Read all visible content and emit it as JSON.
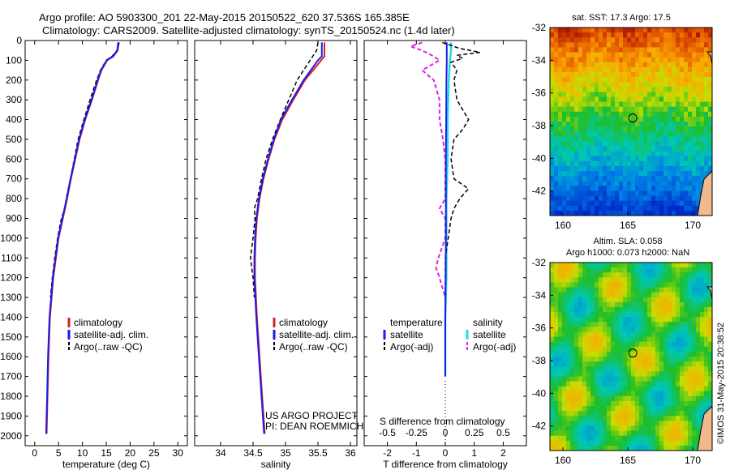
{
  "header": {
    "line1": "Argo profile: AO 5903300_201 22-May-2015 20150522_620 37.536S 165.385E",
    "line2": "Climatology: CARS2009. Satellite-adjusted climatology: synTS_20150524.nc (1.4d later)"
  },
  "colors": {
    "climatology": "#d62020",
    "satellite": "#1a1aee",
    "argo": "#000000",
    "sat_diff_sal": "#22dddd",
    "argo_diff_sal": "#dd22dd"
  },
  "chart_data": [
    {
      "type": "line",
      "title": "Temperature profile",
      "xlabel": "temperature (deg C)",
      "ylabel": "",
      "xlim": [
        -2,
        32
      ],
      "ylim": [
        2050,
        0
      ],
      "xticks": [
        "0",
        "5",
        "10",
        "15",
        "20",
        "25",
        "30"
      ],
      "yticks": [
        "0",
        "100",
        "200",
        "300",
        "400",
        "500",
        "600",
        "700",
        "800",
        "900",
        "1000",
        "1100",
        "1200",
        "1300",
        "1400",
        "1500",
        "1600",
        "1700",
        "1800",
        "1900",
        "2000"
      ],
      "legend": [
        "climatology",
        "satellite-adj. clim.",
        "Argo(..raw -QC)"
      ],
      "series": [
        {
          "name": "climatology",
          "pressure": [
            10,
            50,
            80,
            100,
            150,
            200,
            300,
            400,
            500,
            600,
            700,
            800,
            900,
            1000,
            1200,
            1400,
            1600,
            1800,
            1990
          ],
          "values": [
            17.6,
            17.4,
            16.5,
            15.2,
            14.0,
            13.3,
            12.0,
            10.6,
            9.4,
            8.5,
            7.6,
            6.8,
            5.9,
            5.0,
            3.9,
            3.2,
            2.9,
            2.7,
            2.5
          ]
        },
        {
          "name": "satellite-adj. clim.",
          "pressure": [
            10,
            50,
            80,
            100,
            150,
            200,
            300,
            400,
            500,
            600,
            700,
            800,
            900,
            1000,
            1200,
            1400,
            1600,
            1800,
            1990
          ],
          "values": [
            17.5,
            17.3,
            16.4,
            15.1,
            13.9,
            13.2,
            11.9,
            10.5,
            9.3,
            8.4,
            7.5,
            6.7,
            5.8,
            4.9,
            3.8,
            3.1,
            2.8,
            2.6,
            2.4
          ]
        },
        {
          "name": "Argo(..raw -QC)",
          "pressure": [
            10,
            50,
            80,
            100,
            150,
            200,
            300,
            400,
            500,
            600,
            700,
            800,
            850,
            900,
            1000,
            1100,
            1200,
            1300
          ],
          "values": [
            17.7,
            17.3,
            16.2,
            15.0,
            13.8,
            13.0,
            11.6,
            10.3,
            9.1,
            8.3,
            7.5,
            6.6,
            6.3,
            5.6,
            4.8,
            4.2,
            3.7,
            3.3
          ]
        }
      ]
    },
    {
      "type": "line",
      "title": "Salinity profile",
      "xlabel": "salinity",
      "ylabel": "",
      "xlim": [
        33.6,
        36.1
      ],
      "ylim": [
        2050,
        0
      ],
      "xticks": [
        "34",
        "34.5",
        "35",
        "35.5",
        "36"
      ],
      "legend": [
        "climatology",
        "satellite-adj. clim.",
        "Argo(..raw -QC)"
      ],
      "annotation1": "US ARGO PROJECT",
      "annotation2": "PI: DEAN ROEMMICH",
      "series": [
        {
          "name": "climatology",
          "pressure": [
            10,
            50,
            80,
            100,
            200,
            300,
            400,
            500,
            600,
            700,
            800,
            900,
            1000,
            1100,
            1200,
            1400,
            1600,
            1800,
            1990
          ],
          "values": [
            35.6,
            35.6,
            35.6,
            35.55,
            35.3,
            35.12,
            34.95,
            34.83,
            34.74,
            34.66,
            34.6,
            34.56,
            34.54,
            34.53,
            34.53,
            34.56,
            34.6,
            34.64,
            34.68
          ]
        },
        {
          "name": "satellite-adj. clim.",
          "pressure": [
            10,
            50,
            80,
            100,
            200,
            300,
            400,
            500,
            600,
            700,
            800,
            900,
            1000,
            1100,
            1200,
            1400,
            1600,
            1800,
            1990
          ],
          "values": [
            35.56,
            35.56,
            35.56,
            35.5,
            35.28,
            35.1,
            34.93,
            34.82,
            34.73,
            34.65,
            34.59,
            34.55,
            34.53,
            34.52,
            34.52,
            34.55,
            34.59,
            34.63,
            34.67
          ]
        },
        {
          "name": "Argo(..raw -QC)",
          "pressure": [
            10,
            50,
            80,
            100,
            200,
            300,
            400,
            500,
            600,
            700,
            800,
            850,
            900,
            1000,
            1100,
            1150,
            1200,
            1300
          ],
          "values": [
            35.5,
            35.48,
            35.42,
            35.38,
            35.18,
            35.05,
            34.92,
            34.8,
            34.7,
            34.63,
            34.57,
            34.52,
            34.53,
            34.5,
            34.46,
            34.48,
            34.5,
            34.52
          ]
        }
      ]
    },
    {
      "type": "line",
      "title": "Difference from climatology",
      "xlabel": "T difference from climatology",
      "xlabel_top": "S difference from climatology",
      "xlim": [
        -2.8,
        2.8
      ],
      "ylim": [
        2050,
        0
      ],
      "xticks_bottom": [
        "-2",
        "-1",
        "0",
        "1",
        "2"
      ],
      "xticks_top": [
        "-0.5",
        "-0.25",
        "0",
        "0.25",
        "0.5"
      ],
      "legend_temperature_title": "temperature",
      "legend_salinity_title": "salinity",
      "legend": [
        "satellite",
        "Argo(-adj)",
        "satellite",
        "Argo(-adj)"
      ],
      "series": [
        {
          "name": "temperature satellite",
          "pressure": [
            10,
            50,
            100,
            200,
            400,
            600,
            800,
            1000,
            1200,
            1400,
            1600,
            1700
          ],
          "values": [
            0.05,
            0.05,
            0.05,
            0.04,
            0.03,
            0.02,
            0.02,
            0.02,
            0.01,
            0.0,
            0.0,
            0.0
          ]
        },
        {
          "name": "temperature Argo(-adj)",
          "pressure": [
            10,
            40,
            60,
            75,
            90,
            110,
            150,
            200,
            300,
            350,
            400,
            450,
            500,
            600,
            700,
            750,
            800,
            850,
            900,
            1000,
            1100,
            1200,
            1300
          ],
          "values": [
            -0.1,
            0.5,
            1.2,
            0.4,
            0.6,
            0.2,
            0.4,
            0.3,
            0.4,
            0.6,
            0.8,
            0.6,
            0.3,
            0.2,
            0.3,
            0.8,
            0.5,
            0.3,
            0.2,
            0.1,
            0.0,
            0.0,
            0.0
          ]
        },
        {
          "name": "salinity satellite",
          "pressure": [
            10,
            50,
            100,
            200,
            400,
            600,
            800,
            1000,
            1200,
            1400,
            1600,
            1700
          ],
          "values": [
            0.05,
            0.05,
            0.04,
            0.03,
            0.02,
            0.02,
            0.01,
            0.01,
            0.01,
            0.0,
            0.0,
            0.0
          ]
        },
        {
          "name": "salinity Argo(-adj)",
          "pressure": [
            10,
            30,
            50,
            80,
            100,
            150,
            200,
            300,
            400,
            500,
            600,
            700,
            800,
            850,
            900,
            1000,
            1100,
            1150,
            1200,
            1300
          ],
          "values": [
            -0.2,
            -0.3,
            -0.2,
            -0.1,
            -0.05,
            -0.2,
            -0.1,
            -0.05,
            -0.05,
            -0.02,
            0.0,
            0.0,
            0.0,
            -0.05,
            0.0,
            0.0,
            -0.06,
            -0.08,
            -0.05,
            0.0
          ]
        }
      ]
    },
    {
      "type": "heatmap",
      "title": "sat. SST: 17.3 Argo: 17.5",
      "xlim": [
        159,
        171.5
      ],
      "ylim": [
        -43.5,
        -32
      ],
      "xticks": [
        "160",
        "165",
        "170"
      ],
      "yticks": [
        "-32",
        "-34",
        "-36",
        "-38",
        "-40",
        "-42"
      ],
      "marker": {
        "lon": 165.385,
        "lat": -37.536
      }
    },
    {
      "type": "heatmap",
      "title": "Altim. SLA: 0.058",
      "subtitle": "Argo h1000: 0.073 h2000: NaN",
      "xlim": [
        159,
        171.5
      ],
      "ylim": [
        -43.5,
        -32
      ],
      "xticks": [
        "160",
        "165",
        "170"
      ],
      "yticks": [
        "-32",
        "-34",
        "-36",
        "-38",
        "-40",
        "-42"
      ],
      "marker": {
        "lon": 165.385,
        "lat": -37.536
      }
    }
  ],
  "footer": {
    "credit": "©IMOS 31-May-2015 20:38:52"
  }
}
